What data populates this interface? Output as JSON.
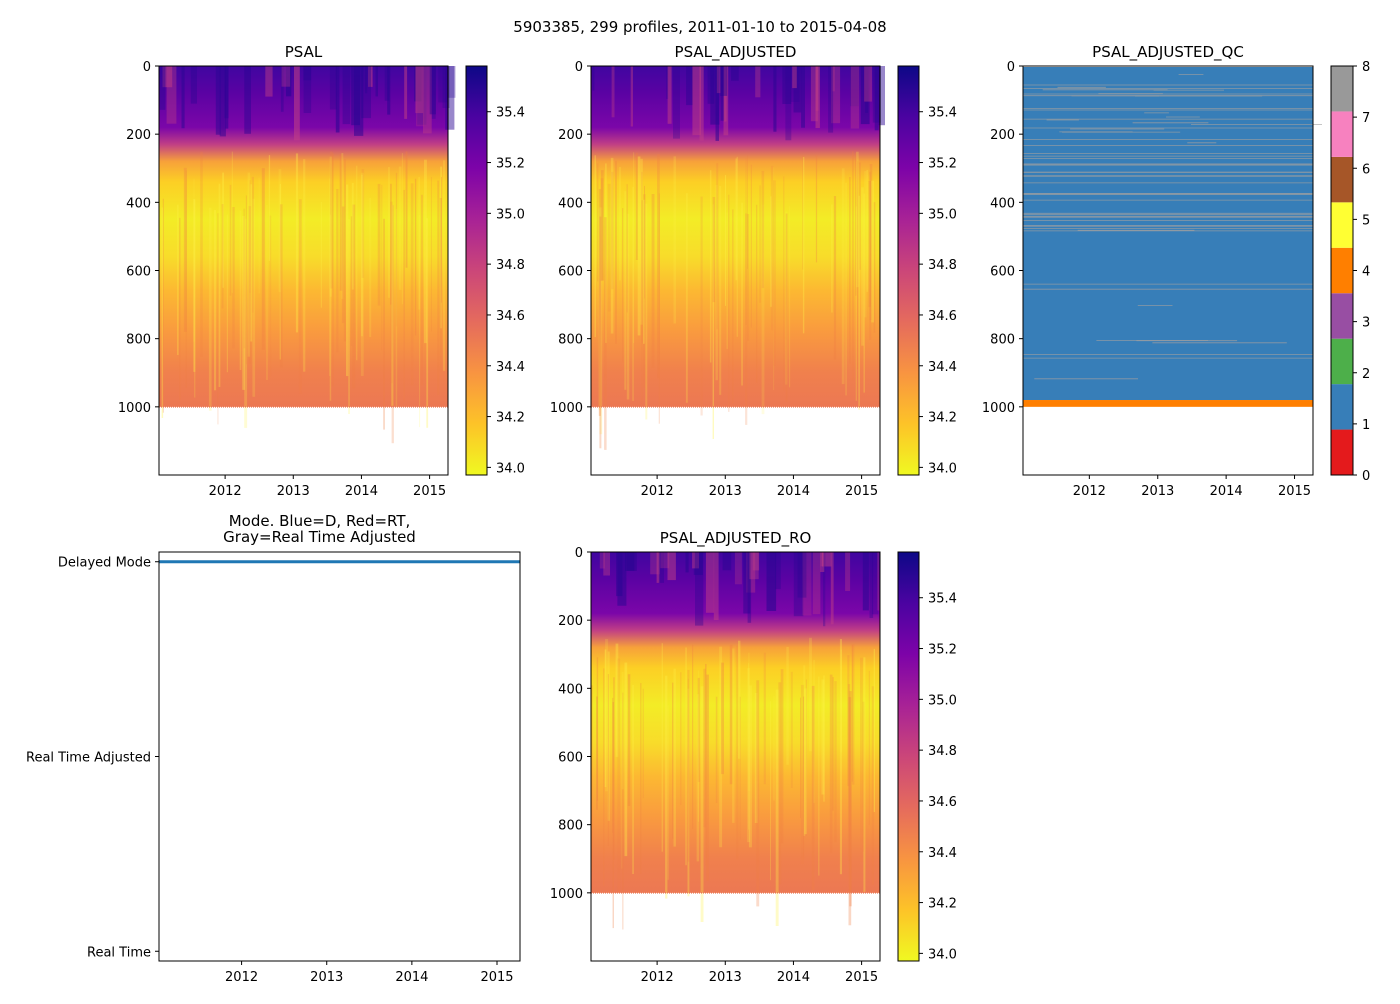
{
  "figure": {
    "suptitle": "5903385, 299 profiles, 2011-01-10 to 2015-04-08"
  },
  "colors": {
    "qc_bg": "#377eb8",
    "qc_line": "#a0a0a0",
    "qc_bottom": "#ff7f00",
    "mode_line": "#1f77b4",
    "qc_classes": [
      "#e41a1c",
      "#377eb8",
      "#4daf4a",
      "#984ea3",
      "#ff7f00",
      "#ffff33",
      "#a65628",
      "#f781bf",
      "#999999"
    ]
  },
  "chart_data": [
    {
      "id": "psal",
      "type": "heatmap",
      "title": "PSAL",
      "xlabel": "",
      "ylabel": "",
      "xlim": [
        2011.03,
        2015.27
      ],
      "ylim": [
        1200,
        0
      ],
      "xticks": [
        "2012",
        "2013",
        "2014",
        "2015"
      ],
      "yticks": [
        "0",
        "200",
        "400",
        "600",
        "800",
        "1000"
      ],
      "depth_max": 1000,
      "colormap": "plasma_r",
      "colorbar": {
        "min": 33.97,
        "max": 35.58,
        "ticks": [
          "34.0",
          "34.2",
          "34.4",
          "34.6",
          "34.8",
          "35.0",
          "35.2",
          "35.4"
        ]
      }
    },
    {
      "id": "psal_adjusted",
      "type": "heatmap",
      "title": "PSAL_ADJUSTED",
      "xlabel": "",
      "ylabel": "",
      "xlim": [
        2011.03,
        2015.27
      ],
      "ylim": [
        1200,
        0
      ],
      "xticks": [
        "2012",
        "2013",
        "2014",
        "2015"
      ],
      "yticks": [
        "0",
        "200",
        "400",
        "600",
        "800",
        "1000"
      ],
      "depth_max": 1000,
      "colormap": "plasma_r",
      "colorbar": {
        "min": 33.97,
        "max": 35.58,
        "ticks": [
          "34.0",
          "34.2",
          "34.4",
          "34.6",
          "34.8",
          "35.0",
          "35.2",
          "35.4"
        ]
      }
    },
    {
      "id": "psal_adjusted_qc",
      "type": "heatmap",
      "title": "PSAL_ADJUSTED_QC",
      "xlabel": "",
      "ylabel": "",
      "xlim": [
        2011.03,
        2015.27
      ],
      "ylim": [
        1200,
        0
      ],
      "xticks": [
        "2012",
        "2013",
        "2014",
        "2015"
      ],
      "yticks": [
        "0",
        "200",
        "400",
        "600",
        "800",
        "1000"
      ],
      "dominant_flag": 1,
      "bottom_flag": 4,
      "bottom_band_depth": [
        980,
        1000
      ],
      "colorbar": {
        "min": 0,
        "max": 8,
        "ticks": [
          "0",
          "1",
          "2",
          "3",
          "4",
          "5",
          "6",
          "7",
          "8"
        ]
      }
    },
    {
      "id": "mode",
      "type": "line",
      "title_lines": [
        "Mode. Blue=D, Red=RT,",
        "Gray=Real Time Adjusted"
      ],
      "xlabel": "",
      "ylabel": "",
      "xlim": [
        2011.03,
        2015.27
      ],
      "ylim": [
        -0.05,
        2.05
      ],
      "xticks": [
        "2012",
        "2013",
        "2014",
        "2015"
      ],
      "yticks": [
        "Real Time",
        "Real Time Adjusted",
        "Delayed Mode"
      ],
      "series": [
        {
          "name": "Delayed Mode",
          "x": [
            2011.03,
            2015.27
          ],
          "y": [
            2,
            2
          ]
        }
      ]
    },
    {
      "id": "psal_adjusted_ro",
      "type": "heatmap",
      "title": "PSAL_ADJUSTED_RO",
      "xlabel": "",
      "ylabel": "",
      "xlim": [
        2011.03,
        2015.27
      ],
      "ylim": [
        1200,
        0
      ],
      "xticks": [
        "2012",
        "2013",
        "2014",
        "2015"
      ],
      "yticks": [
        "0",
        "200",
        "400",
        "600",
        "800",
        "1000"
      ],
      "depth_max": 1000,
      "colormap": "plasma_r",
      "colorbar": {
        "min": 33.97,
        "max": 35.58,
        "ticks": [
          "34.0",
          "34.2",
          "34.4",
          "34.6",
          "34.8",
          "35.0",
          "35.2",
          "35.4"
        ]
      }
    }
  ]
}
